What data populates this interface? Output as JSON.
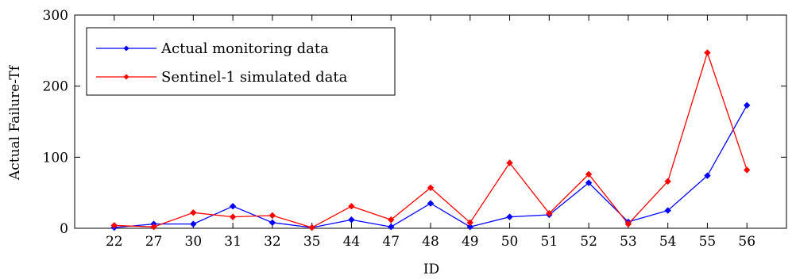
{
  "chart_data": {
    "type": "line",
    "title": "",
    "xlabel": "ID",
    "ylabel": "Actual Failure-Tf",
    "categories": [
      "22",
      "27",
      "30",
      "31",
      "32",
      "35",
      "44",
      "47",
      "48",
      "49",
      "50",
      "51",
      "52",
      "53",
      "54",
      "55",
      "56"
    ],
    "ylim": [
      0,
      300
    ],
    "yticks": [
      0,
      100,
      200,
      300
    ],
    "grid": false,
    "legend_position": "top-left",
    "series": [
      {
        "name": "Actual monitoring data",
        "color": "#0000ff",
        "marker": "diamond",
        "values": [
          1,
          6,
          6,
          31,
          8,
          1,
          12,
          2,
          35,
          2,
          16,
          19,
          64,
          9,
          25,
          74,
          173
        ]
      },
      {
        "name": "Sentinel-1 simulated data",
        "color": "#ff0000",
        "marker": "diamond",
        "values": [
          4,
          2,
          22,
          16,
          18,
          1,
          31,
          12,
          57,
          8,
          92,
          21,
          76,
          6,
          66,
          247,
          82
        ]
      }
    ]
  }
}
